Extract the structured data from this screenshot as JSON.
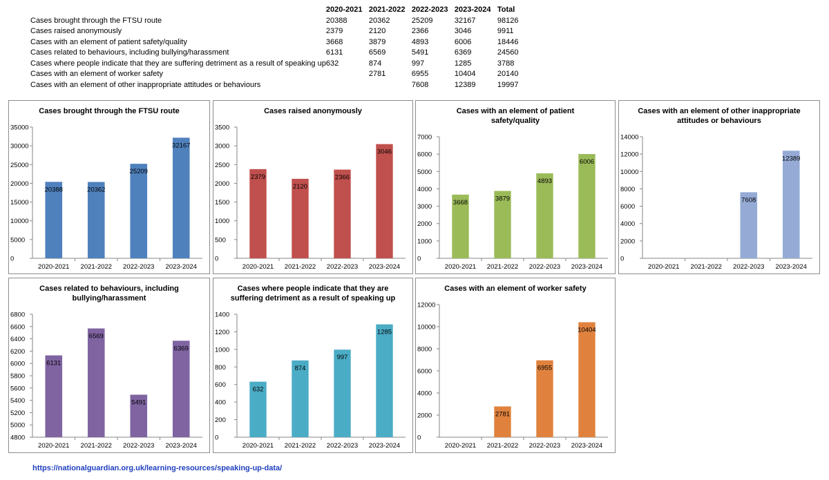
{
  "summary_table": {
    "header": [
      "",
      "2020-2021",
      "2021-2022",
      "2022-2023",
      "2023-2024",
      "Total"
    ],
    "rows": [
      [
        "Cases brought through the FTSU route",
        "20388",
        "20362",
        "25209",
        "32167",
        "98126"
      ],
      [
        "Cases raised anonymously",
        "2379",
        "2120",
        "2366",
        "3046",
        "9911"
      ],
      [
        "Cases with an element of patient safety/quality",
        "3668",
        "3879",
        "4893",
        "6006",
        "18446"
      ],
      [
        "Cases related to behaviours, including bullying/harassment",
        "6131",
        "6569",
        "5491",
        "6369",
        "24560"
      ],
      [
        "Cases where people indicate that they are suffering detriment as a result of speaking up",
        "632",
        "874",
        "997",
        "1285",
        "3788"
      ],
      [
        "Cases with an element of worker safety",
        "",
        "2781",
        "6955",
        "10404",
        "20140"
      ],
      [
        "Cases with an element of other inappropriate attitudes or behaviours",
        "",
        "",
        "7608",
        "12389",
        "19997"
      ]
    ]
  },
  "chart_data": [
    {
      "type": "bar",
      "title": "Cases brought through the FTSU route",
      "categories": [
        "2020-2021",
        "2021-2022",
        "2022-2023",
        "2023-2024"
      ],
      "values": [
        20388,
        20362,
        25209,
        32167
      ],
      "ylim": [
        0,
        35000
      ],
      "ystep": 5000,
      "color": "#4f81bd",
      "grid": false,
      "legend": "none"
    },
    {
      "type": "bar",
      "title": "Cases raised anonymously",
      "categories": [
        "2020-2021",
        "2021-2022",
        "2022-2023",
        "2023-2024"
      ],
      "values": [
        2379,
        2120,
        2366,
        3046
      ],
      "ylim": [
        0,
        3500
      ],
      "ystep": 500,
      "color": "#c0504d",
      "grid": false,
      "legend": "none"
    },
    {
      "type": "bar",
      "title": "Cases with an element of patient safety/quality",
      "categories": [
        "2020-2021",
        "2021-2022",
        "2022-2023",
        "2023-2024"
      ],
      "values": [
        3668,
        3879,
        4893,
        6006
      ],
      "ylim": [
        0,
        7000
      ],
      "ystep": 1000,
      "color": "#9bbb59",
      "grid": false,
      "legend": "none"
    },
    {
      "type": "bar",
      "title": "Cases with an element of other inappropriate attitudes or behaviours",
      "categories": [
        "2020-2021",
        "2021-2022",
        "2022-2023",
        "2023-2024"
      ],
      "values": [
        null,
        null,
        7608,
        12389
      ],
      "ylim": [
        0,
        14000
      ],
      "ystep": 2000,
      "color": "#95abd5",
      "grid": false,
      "legend": "none"
    },
    {
      "type": "bar",
      "title": "Cases related to behaviours, including bullying/harassment",
      "categories": [
        "2020-2021",
        "2021-2022",
        "2022-2023",
        "2023-2024"
      ],
      "values": [
        6131,
        6569,
        5491,
        6369
      ],
      "ylim": [
        4800,
        6800
      ],
      "ystep": 200,
      "color": "#8064a2",
      "grid": false,
      "legend": "none"
    },
    {
      "type": "bar",
      "title": "Cases where people indicate that they are suffering detriment as a result of speaking up",
      "categories": [
        "2020-2021",
        "2021-2022",
        "2022-2023",
        "2023-2024"
      ],
      "values": [
        632,
        874,
        997,
        1285
      ],
      "ylim": [
        0,
        1400
      ],
      "ystep": 200,
      "color": "#4bacc6",
      "grid": false,
      "legend": "none"
    },
    {
      "type": "bar",
      "title": "Cases with an element of worker safety",
      "categories": [
        "2020-2021",
        "2021-2022",
        "2022-2023",
        "2023-2024"
      ],
      "values": [
        null,
        2781,
        6955,
        10404
      ],
      "ylim": [
        0,
        12000
      ],
      "ystep": 2000,
      "color": "#e0823d",
      "grid": false,
      "legend": "none"
    }
  ],
  "footer": {
    "source_url": "https://nationalguardian.org.uk/learning-resources/speaking-up-data/"
  }
}
